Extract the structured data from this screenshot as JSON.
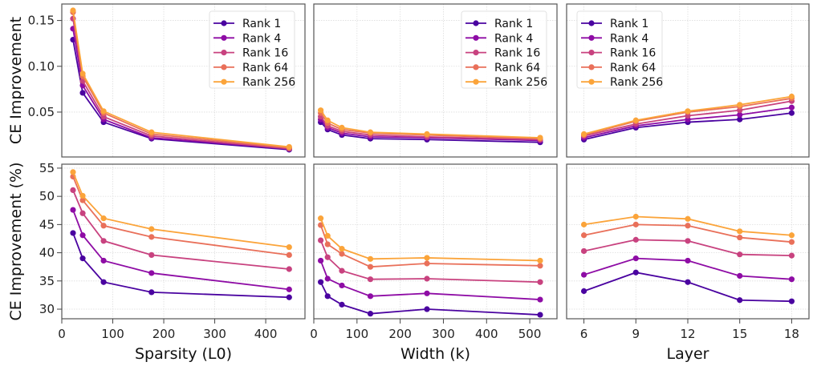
{
  "chart_data": [
    {
      "type": "line",
      "panel": "top-left",
      "xlabel": "",
      "ylabel": "CE Improvement",
      "xlim": [
        0,
        477
      ],
      "ylim": [
        0.001,
        0.168
      ],
      "xticks": [
        0,
        100,
        200,
        300,
        400
      ],
      "yticks": [
        0.05,
        0.1,
        0.15
      ],
      "ytick_labels": [
        "0.05",
        "0.10",
        "0.15"
      ],
      "show_xtick_labels": false,
      "show_ytick_labels": true,
      "grid": true,
      "legend": "upper-right",
      "x": [
        22,
        41,
        82,
        176,
        446
      ],
      "series": [
        {
          "name": "Rank 1",
          "values": [
            0.129,
            0.071,
            0.039,
            0.021,
            0.009
          ]
        },
        {
          "name": "Rank 4",
          "values": [
            0.141,
            0.079,
            0.042,
            0.022,
            0.01
          ]
        },
        {
          "name": "Rank 16",
          "values": [
            0.152,
            0.084,
            0.045,
            0.024,
            0.01
          ]
        },
        {
          "name": "Rank 64",
          "values": [
            0.159,
            0.089,
            0.049,
            0.026,
            0.011
          ]
        },
        {
          "name": "Rank 256",
          "values": [
            0.161,
            0.092,
            0.051,
            0.028,
            0.012
          ]
        }
      ]
    },
    {
      "type": "line",
      "panel": "top-middle",
      "xlabel": "",
      "ylabel": "",
      "xlim": [
        0,
        563
      ],
      "ylim": [
        0.001,
        0.168
      ],
      "xticks": [
        0,
        100,
        200,
        300,
        400,
        500
      ],
      "yticks": [
        0.05,
        0.1,
        0.15
      ],
      "show_xtick_labels": false,
      "show_ytick_labels": false,
      "grid": true,
      "legend": "upper-right",
      "x": [
        16,
        32,
        65,
        131,
        262,
        524
      ],
      "series": [
        {
          "name": "Rank 1",
          "values": [
            0.039,
            0.031,
            0.025,
            0.021,
            0.02,
            0.017
          ]
        },
        {
          "name": "Rank 4",
          "values": [
            0.042,
            0.033,
            0.027,
            0.023,
            0.022,
            0.019
          ]
        },
        {
          "name": "Rank 16",
          "values": [
            0.045,
            0.035,
            0.029,
            0.025,
            0.023,
            0.02
          ]
        },
        {
          "name": "Rank 64",
          "values": [
            0.049,
            0.038,
            0.031,
            0.027,
            0.025,
            0.021
          ]
        },
        {
          "name": "Rank 256",
          "values": [
            0.052,
            0.041,
            0.033,
            0.028,
            0.026,
            0.022
          ]
        }
      ]
    },
    {
      "type": "line",
      "panel": "top-right",
      "xlabel": "",
      "ylabel": "",
      "xlim": [
        5,
        19
      ],
      "ylim": [
        0.001,
        0.168
      ],
      "xticks": [
        6,
        9,
        12,
        15,
        18
      ],
      "yticks": [
        0.05,
        0.1,
        0.15
      ],
      "show_xtick_labels": false,
      "show_ytick_labels": false,
      "grid": true,
      "legend": "upper-left",
      "x": [
        6,
        9,
        12,
        15,
        18
      ],
      "series": [
        {
          "name": "Rank 1",
          "values": [
            0.02,
            0.033,
            0.039,
            0.042,
            0.049
          ]
        },
        {
          "name": "Rank 4",
          "values": [
            0.022,
            0.035,
            0.042,
            0.047,
            0.055
          ]
        },
        {
          "name": "Rank 16",
          "values": [
            0.024,
            0.037,
            0.046,
            0.052,
            0.062
          ]
        },
        {
          "name": "Rank 64",
          "values": [
            0.025,
            0.04,
            0.05,
            0.056,
            0.065
          ]
        },
        {
          "name": "Rank 256",
          "values": [
            0.026,
            0.041,
            0.051,
            0.058,
            0.067
          ]
        }
      ]
    },
    {
      "type": "line",
      "panel": "bottom-left",
      "xlabel": "Sparsity (L0)",
      "ylabel": "CE Improvement (%)",
      "xlim": [
        0,
        477
      ],
      "ylim": [
        28.3,
        55.7
      ],
      "xticks": [
        0,
        100,
        200,
        300,
        400
      ],
      "yticks": [
        30,
        35,
        40,
        45,
        50,
        55
      ],
      "show_xtick_labels": true,
      "show_ytick_labels": true,
      "grid": true,
      "legend": "none",
      "x": [
        22,
        41,
        82,
        176,
        446
      ],
      "series": [
        {
          "name": "Rank 1",
          "values": [
            43.5,
            39.0,
            34.8,
            33.0,
            32.1
          ]
        },
        {
          "name": "Rank 4",
          "values": [
            47.6,
            43.1,
            38.6,
            36.4,
            33.5
          ]
        },
        {
          "name": "Rank 16",
          "values": [
            51.1,
            47.0,
            42.1,
            39.6,
            37.1
          ]
        },
        {
          "name": "Rank 64",
          "values": [
            53.5,
            49.3,
            44.8,
            42.8,
            39.6
          ]
        },
        {
          "name": "Rank 256",
          "values": [
            54.3,
            50.1,
            46.1,
            44.2,
            41.0
          ]
        }
      ]
    },
    {
      "type": "line",
      "panel": "bottom-middle",
      "xlabel": "Width (k)",
      "ylabel": "",
      "xlim": [
        0,
        563
      ],
      "ylim": [
        28.3,
        55.7
      ],
      "xticks": [
        0,
        100,
        200,
        300,
        400,
        500
      ],
      "yticks": [
        30,
        35,
        40,
        45,
        50,
        55
      ],
      "show_xtick_labels": true,
      "show_ytick_labels": false,
      "grid": true,
      "legend": "none",
      "x": [
        16,
        32,
        65,
        131,
        262,
        524
      ],
      "series": [
        {
          "name": "Rank 1",
          "values": [
            34.8,
            32.3,
            30.8,
            29.2,
            30.0,
            29.0
          ]
        },
        {
          "name": "Rank 4",
          "values": [
            38.6,
            35.4,
            34.2,
            32.3,
            32.8,
            31.7
          ]
        },
        {
          "name": "Rank 16",
          "values": [
            42.2,
            39.2,
            36.8,
            35.3,
            35.4,
            34.8
          ]
        },
        {
          "name": "Rank 64",
          "values": [
            44.9,
            41.5,
            39.8,
            37.5,
            38.1,
            37.7
          ]
        },
        {
          "name": "Rank 256",
          "values": [
            46.1,
            43.0,
            40.7,
            38.9,
            39.1,
            38.6
          ]
        }
      ]
    },
    {
      "type": "line",
      "panel": "bottom-right",
      "xlabel": "Layer",
      "ylabel": "",
      "xlim": [
        5,
        19
      ],
      "ylim": [
        28.3,
        55.7
      ],
      "xticks": [
        6,
        9,
        12,
        15,
        18
      ],
      "yticks": [
        30,
        35,
        40,
        45,
        50,
        55
      ],
      "show_xtick_labels": true,
      "show_ytick_labels": false,
      "grid": true,
      "legend": "none",
      "x": [
        6,
        9,
        12,
        15,
        18
      ],
      "series": [
        {
          "name": "Rank 1",
          "values": [
            33.2,
            36.5,
            34.8,
            31.6,
            31.4
          ]
        },
        {
          "name": "Rank 4",
          "values": [
            36.1,
            39.0,
            38.6,
            35.9,
            35.3
          ]
        },
        {
          "name": "Rank 16",
          "values": [
            40.3,
            42.3,
            42.1,
            39.7,
            39.5
          ]
        },
        {
          "name": "Rank 64",
          "values": [
            43.1,
            45.0,
            44.8,
            42.7,
            41.9
          ]
        },
        {
          "name": "Rank 256",
          "values": [
            45.0,
            46.4,
            46.0,
            43.8,
            43.1
          ]
        }
      ]
    }
  ],
  "series_colors": [
    "#4a03a0",
    "#8e0ca5",
    "#c8427f",
    "#e9705a",
    "#fba43a"
  ]
}
